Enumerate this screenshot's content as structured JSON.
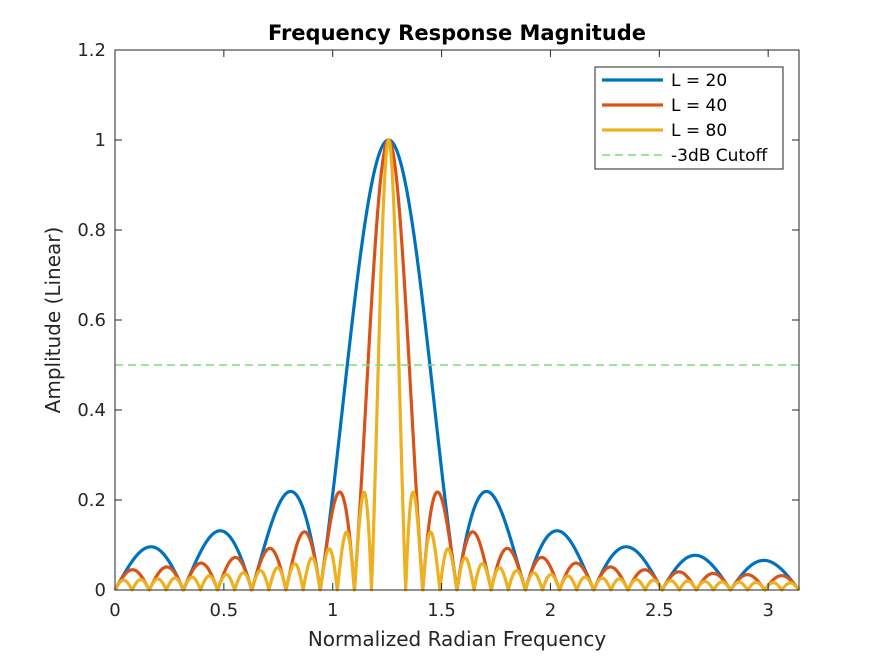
{
  "chart_data": {
    "type": "line",
    "title": "Frequency Response Magnitude",
    "xlabel": "Normalized Radian Frequency",
    "ylabel": "Amplitude (Linear)",
    "xlim": [
      0,
      3.1416
    ],
    "ylim": [
      0,
      1.2
    ],
    "xticks": [
      0,
      0.5,
      1,
      1.5,
      2,
      2.5,
      3
    ],
    "yticks": [
      0,
      0.2,
      0.4,
      0.6,
      0.8,
      1,
      1.2
    ],
    "xtick_labels": [
      "0",
      "0.5",
      "1",
      "1.5",
      "2",
      "2.5",
      "3"
    ],
    "ytick_labels": [
      "0",
      "0.2",
      "0.4",
      "0.6",
      "0.8",
      "1",
      "1.2"
    ],
    "grid": false,
    "legend_position": "top-right",
    "series": [
      {
        "name": "L = 20",
        "color": "#0072BD",
        "style": "solid",
        "L": 20,
        "center": 1.2566
      },
      {
        "name": "L = 40",
        "color": "#D95319",
        "style": "solid",
        "L": 40,
        "center": 1.2566
      },
      {
        "name": "L = 80",
        "color": "#EDB120",
        "style": "solid",
        "L": 80,
        "center": 1.2566
      },
      {
        "name": "-3dB Cutoff",
        "color": "#77DD77",
        "style": "dashed",
        "y": 0.5
      }
    ]
  }
}
